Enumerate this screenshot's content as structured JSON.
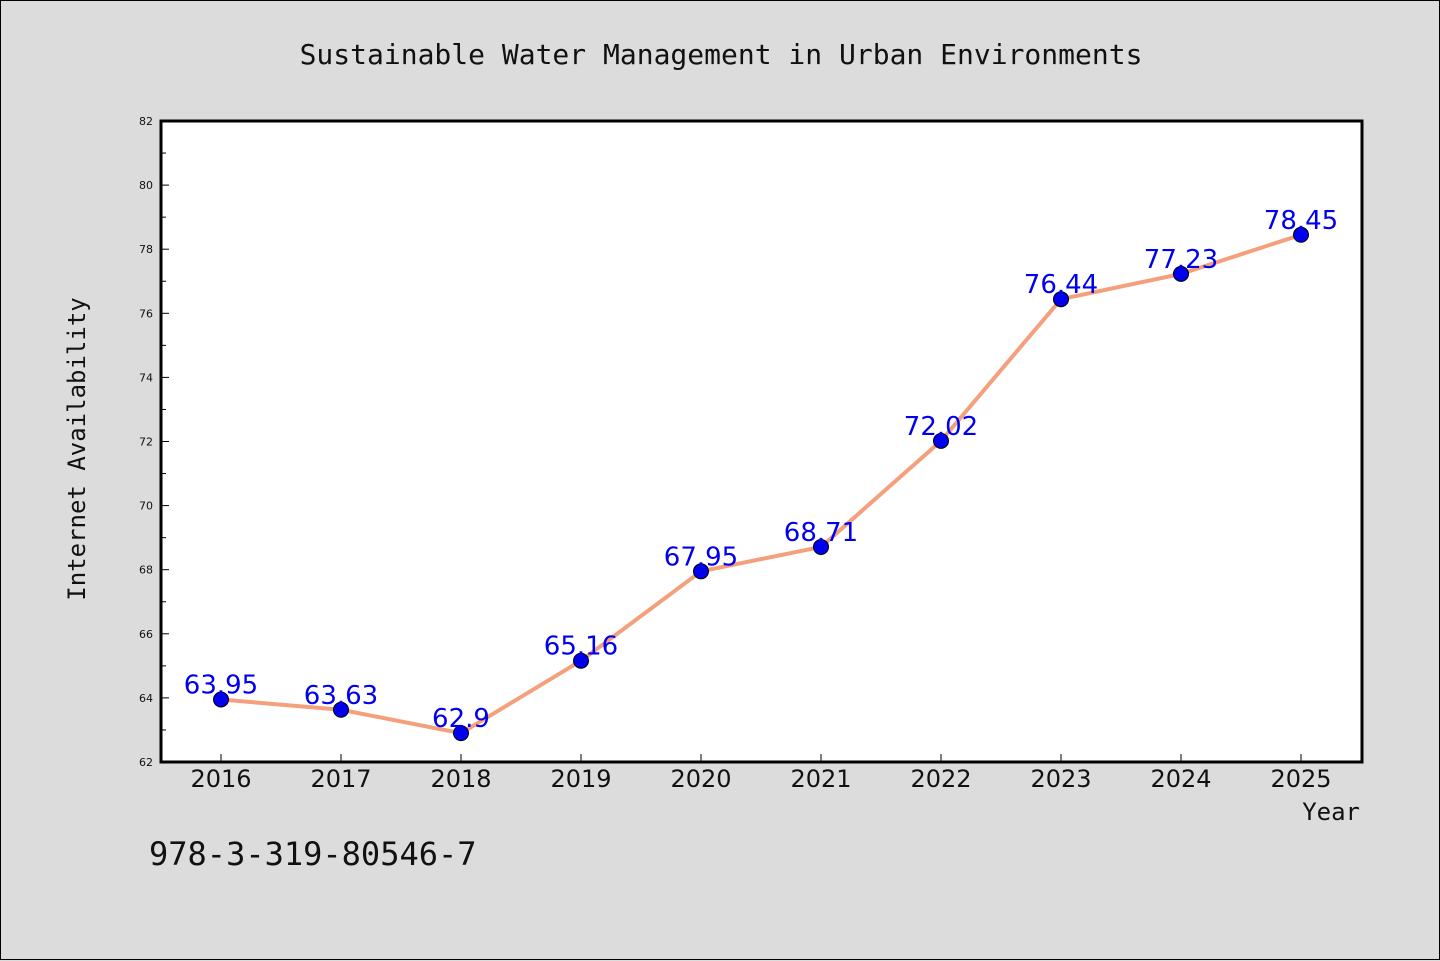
{
  "chart_data": {
    "type": "line",
    "title": "Sustainable Water Management in Urban Environments",
    "xlabel": "Year",
    "ylabel": "Internet Availability",
    "categories": [
      "2016",
      "2017",
      "2018",
      "2019",
      "2020",
      "2021",
      "2022",
      "2023",
      "2024",
      "2025"
    ],
    "series": [
      {
        "values": [
          63.95,
          63.63,
          62.9,
          65.16,
          67.95,
          68.71,
          72.02,
          76.44,
          77.23,
          78.45
        ],
        "data_labels": [
          "63.95",
          "63.63",
          "62.9",
          "65.16",
          "67.95",
          "68.71",
          "72.02",
          "76.44",
          "77.23",
          "78.45"
        ]
      }
    ],
    "ylim": [
      62,
      82
    ],
    "yticks": [
      "62",
      "64",
      "66",
      "68",
      "70",
      "72",
      "74",
      "76",
      "78",
      "80",
      "82"
    ],
    "grid": false,
    "line_color": "#f4a07c",
    "marker_color": "#0000ee",
    "label_color": "#0000ee"
  },
  "footer_text": "978-3-319-80546-7"
}
